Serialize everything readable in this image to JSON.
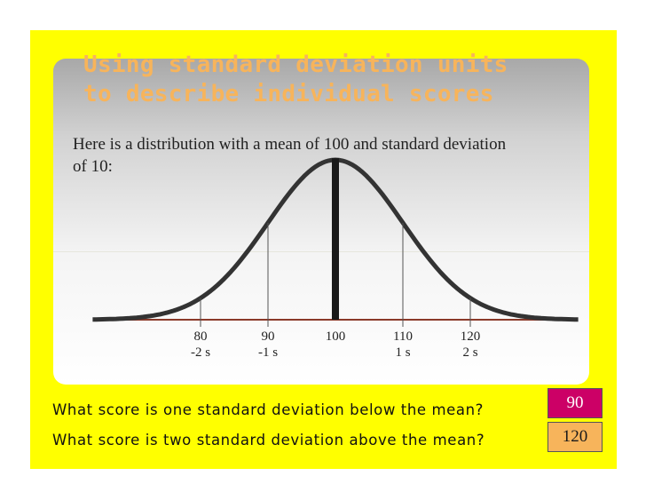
{
  "slide": {
    "title_lines": [
      "Using standard deviation units",
      "to describe individual scores"
    ],
    "intro_lines": [
      "Here is a distribution with a mean of 100 and standard deviation",
      "of 10:"
    ]
  },
  "diagram": {
    "type": "normal-distribution",
    "mean": 100,
    "sd": 10,
    "ticks": [
      {
        "value": 80,
        "label": "80",
        "sd_label": "-2 s"
      },
      {
        "value": 90,
        "label": "90",
        "sd_label": "-1 s"
      },
      {
        "value": 100,
        "label": "100",
        "sd_label": ""
      },
      {
        "value": 110,
        "label": "110",
        "sd_label": "1 s"
      },
      {
        "value": 120,
        "label": "120",
        "sd_label": "2 s"
      }
    ]
  },
  "questions": [
    {
      "text": "What score is one standard deviation below the mean?",
      "answer": "90",
      "answer_color": "#cc0066"
    },
    {
      "text": "What score is two standard deviation above the mean?",
      "answer": "120",
      "answer_color": "#f7b45b"
    }
  ],
  "colors": {
    "frame": "#ffff00",
    "title": "#f7b45b",
    "curve": "#333333",
    "baseline": "#8b3a2a"
  }
}
